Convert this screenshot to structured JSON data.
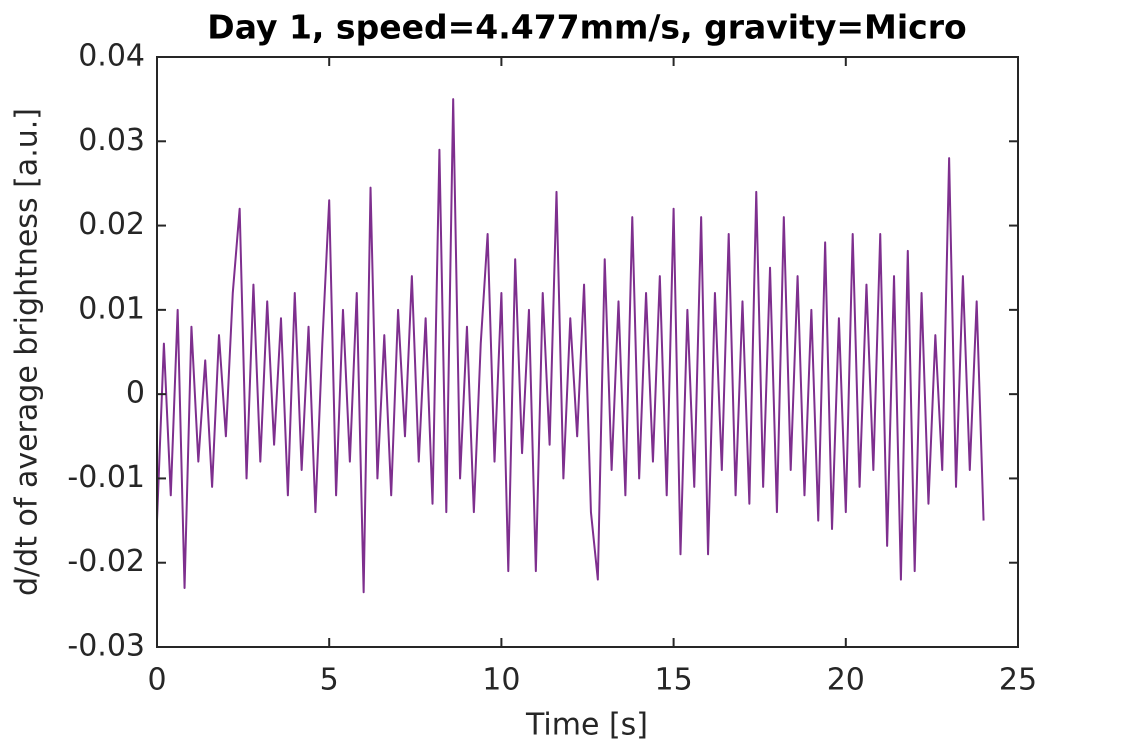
{
  "chart_data": {
    "type": "line",
    "title": "Day 1, speed=4.477mm/s, gravity=Micro",
    "xlabel": "Time [s]",
    "ylabel": "d/dt of average brightness [a.u.]",
    "xlim": [
      0,
      25
    ],
    "xticks": [
      0,
      5,
      10,
      15,
      20,
      25
    ],
    "ylim": [
      -0.03,
      0.04
    ],
    "yticks": [
      -0.03,
      -0.02,
      -0.01,
      0,
      0.01,
      0.02,
      0.03,
      0.04
    ],
    "grid": false,
    "x": [
      0,
      0.2,
      0.4,
      0.6,
      0.8,
      1,
      1.2,
      1.4,
      1.6,
      1.8,
      2,
      2.2,
      2.4,
      2.6,
      2.8,
      3,
      3.2,
      3.4,
      3.6,
      3.8,
      4,
      4.2,
      4.4,
      4.6,
      4.8,
      5,
      5.2,
      5.4,
      5.6,
      5.8,
      6,
      6.2,
      6.4,
      6.6,
      6.8,
      7,
      7.2,
      7.4,
      7.6,
      7.8,
      8,
      8.2,
      8.4,
      8.6,
      8.8,
      9,
      9.2,
      9.4,
      9.6,
      9.8,
      10,
      10.2,
      10.4,
      10.6,
      10.8,
      11,
      11.2,
      11.4,
      11.6,
      11.8,
      12,
      12.2,
      12.4,
      12.6,
      12.8,
      13,
      13.2,
      13.4,
      13.6,
      13.8,
      14,
      14.2,
      14.4,
      14.6,
      14.8,
      15,
      15.2,
      15.4,
      15.6,
      15.8,
      16,
      16.2,
      16.4,
      16.6,
      16.8,
      17,
      17.2,
      17.4,
      17.6,
      17.8,
      18,
      18.2,
      18.4,
      18.6,
      18.8,
      19,
      19.2,
      19.4,
      19.6,
      19.8,
      20,
      20.2,
      20.4,
      20.6,
      20.8,
      21,
      21.2,
      21.4,
      21.6,
      21.8,
      22,
      22.2,
      22.4,
      22.6,
      22.8,
      23,
      23.2,
      23.4,
      23.6,
      23.8,
      24
    ],
    "series": [
      {
        "name": "brightness",
        "color": "#7e2f8e",
        "values": [
          -0.015,
          0.006,
          -0.012,
          0.01,
          -0.023,
          0.008,
          -0.008,
          0.004,
          -0.011,
          0.007,
          -0.005,
          0.012,
          0.022,
          -0.01,
          0.013,
          -0.008,
          0.011,
          -0.006,
          0.009,
          -0.012,
          0.012,
          -0.009,
          0.008,
          -0.014,
          0.006,
          0.023,
          -0.012,
          0.01,
          -0.008,
          0.012,
          -0.0235,
          0.0245,
          -0.01,
          0.007,
          -0.012,
          0.01,
          -0.005,
          0.014,
          -0.008,
          0.009,
          -0.013,
          0.029,
          -0.014,
          0.035,
          -0.01,
          0.008,
          -0.014,
          0.006,
          0.019,
          -0.008,
          0.012,
          -0.021,
          0.016,
          -0.007,
          0.01,
          -0.021,
          0.012,
          -0.006,
          0.024,
          -0.01,
          0.009,
          -0.005,
          0.013,
          -0.014,
          -0.022,
          0.016,
          -0.009,
          0.011,
          -0.012,
          0.021,
          -0.01,
          0.012,
          -0.008,
          0.014,
          -0.012,
          0.022,
          -0.019,
          0.01,
          -0.011,
          0.021,
          -0.019,
          0.012,
          -0.009,
          0.019,
          -0.012,
          0.011,
          -0.013,
          0.024,
          -0.011,
          0.015,
          -0.014,
          0.021,
          -0.009,
          0.014,
          -0.012,
          0.01,
          -0.015,
          0.018,
          -0.016,
          0.009,
          -0.014,
          0.019,
          -0.011,
          0.013,
          -0.009,
          0.019,
          -0.018,
          0.014,
          -0.022,
          0.017,
          -0.021,
          0.012,
          -0.013,
          0.007,
          -0.009,
          0.028,
          -0.011,
          0.014,
          -0.009,
          0.011,
          -0.015
        ]
      }
    ]
  }
}
